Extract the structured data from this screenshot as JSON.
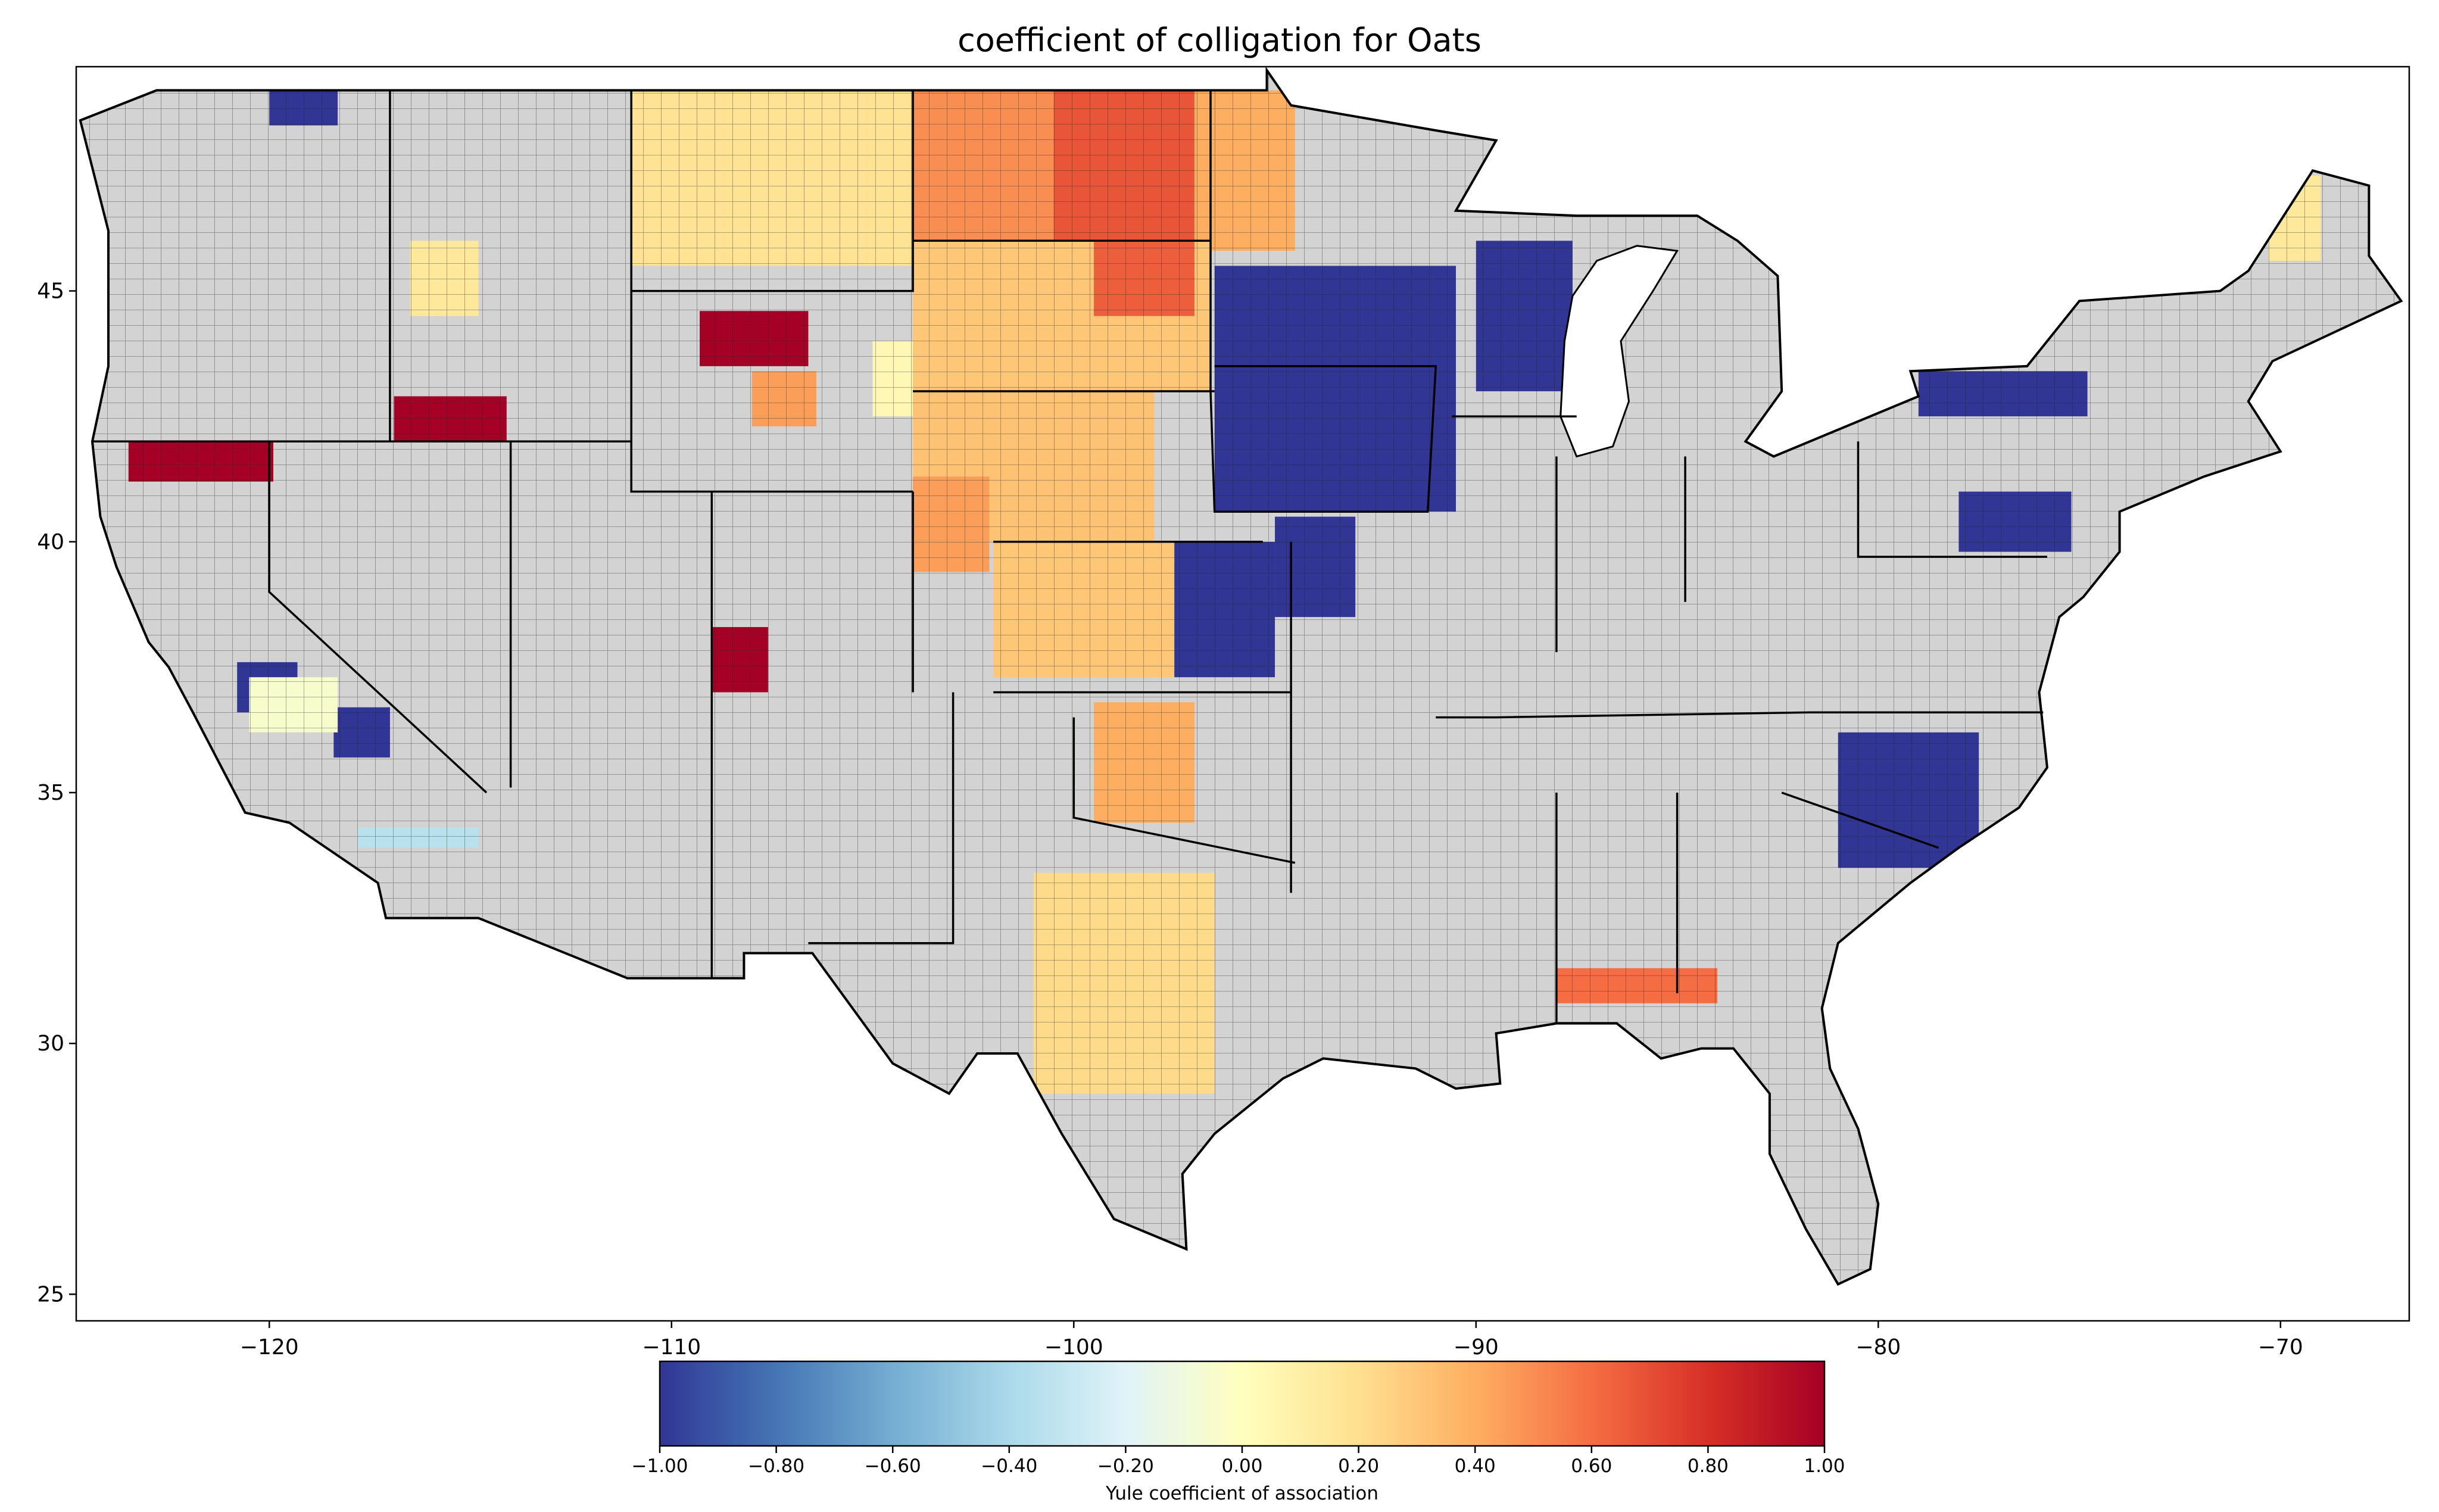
{
  "title": "coefficient of colligation for Oats",
  "chart_data": {
    "type": "choropleth",
    "title": "coefficient of colligation for Oats",
    "xlim": [
      -124.8,
      -66.8
    ],
    "ylim": [
      24.47,
      49.47
    ],
    "x_ticks": [
      -120,
      -110,
      -100,
      -90,
      -80,
      -70
    ],
    "x_tick_labels": [
      "−120",
      "−110",
      "−100",
      "−90",
      "−80",
      "−70"
    ],
    "y_ticks": [
      25,
      30,
      35,
      40,
      45
    ],
    "y_tick_labels": [
      "25",
      "30",
      "35",
      "40",
      "45"
    ],
    "no_data_color": "#d3d3d3",
    "colorbar": {
      "label": "Yule coefficient of association",
      "range": [
        -1.0,
        1.0
      ],
      "colormap": "RdYlBu_r",
      "ticks": [
        -1,
        -0.8,
        -0.6,
        -0.4,
        -0.2,
        0,
        0.2,
        0.4,
        0.6,
        0.8,
        1
      ],
      "tick_labels": [
        "−1.00",
        "−0.80",
        "−0.60",
        "−0.40",
        "−0.20",
        "0.00",
        "0.20",
        "0.40",
        "0.60",
        "0.80",
        "1.00"
      ],
      "placement": "bottom"
    },
    "regions": [
      {
        "name": "montana-central-east",
        "lon": [
          -111,
          -104
        ],
        "lat": [
          45.5,
          49
        ],
        "value": 0.18
      },
      {
        "name": "north-dakota-west",
        "lon": [
          -104,
          -100.5
        ],
        "lat": [
          46,
          49
        ],
        "value": 0.5
      },
      {
        "name": "north-dakota-east",
        "lon": [
          -100.5,
          -97
        ],
        "lat": [
          46,
          49
        ],
        "value": 0.68
      },
      {
        "name": "minnesota-northwest",
        "lon": [
          -97,
          -94.5
        ],
        "lat": [
          45.8,
          49
        ],
        "value": 0.4
      },
      {
        "name": "south-dakota",
        "lon": [
          -104,
          -96.6
        ],
        "lat": [
          43,
          46
        ],
        "value": 0.3
      },
      {
        "name": "south-dakota-east",
        "lon": [
          -99.5,
          -97
        ],
        "lat": [
          44.5,
          46
        ],
        "value": 0.65
      },
      {
        "name": "nebraska-west",
        "lon": [
          -104,
          -98
        ],
        "lat": [
          40,
          43
        ],
        "value": 0.32
      },
      {
        "name": "kansas",
        "lon": [
          -102,
          -97.5
        ],
        "lat": [
          37.3,
          40
        ],
        "value": 0.3
      },
      {
        "name": "kansas-east",
        "lon": [
          -97.5,
          -95
        ],
        "lat": [
          37.3,
          40
        ],
        "value": -1
      },
      {
        "name": "iowa-minnesota",
        "lon": [
          -96.5,
          -90.5
        ],
        "lat": [
          40.6,
          45.5
        ],
        "value": -1
      },
      {
        "name": "wisconsin-east",
        "lon": [
          -90,
          -87.6
        ],
        "lat": [
          43,
          46
        ],
        "value": -1
      },
      {
        "name": "wyoming-central",
        "lon": [
          -109.3,
          -106.6
        ],
        "lat": [
          43.5,
          44.6
        ],
        "value": 1
      },
      {
        "name": "wyoming-south-central",
        "lon": [
          -108,
          -106.4
        ],
        "lat": [
          42.3,
          43.4
        ],
        "value": 0.45
      },
      {
        "name": "wyoming-east",
        "lon": [
          -105,
          -104
        ],
        "lat": [
          42.5,
          44
        ],
        "value": 0.05
      },
      {
        "name": "idaho-south",
        "lon": [
          -116.9,
          -114.1
        ],
        "lat": [
          42,
          42.9
        ],
        "value": 1
      },
      {
        "name": "oregon-california-border",
        "lon": [
          -123.5,
          -119.9
        ],
        "lat": [
          41.2,
          42
        ],
        "value": 1
      },
      {
        "name": "utah-colorado",
        "lon": [
          -109,
          -107.6
        ],
        "lat": [
          37,
          38.3
        ],
        "value": 1
      },
      {
        "name": "colorado-northeast",
        "lon": [
          -104,
          -102.1
        ],
        "lat": [
          39.4,
          41.3
        ],
        "value": 0.45
      },
      {
        "name": "texas-central",
        "lon": [
          -101,
          -96.5
        ],
        "lat": [
          29,
          33.4
        ],
        "value": 0.22
      },
      {
        "name": "oklahoma",
        "lon": [
          -99.5,
          -97
        ],
        "lat": [
          34.4,
          36.8
        ],
        "value": 0.4
      },
      {
        "name": "new-york-west",
        "lon": [
          -79,
          -74.8
        ],
        "lat": [
          42.5,
          43.4
        ],
        "value": -1
      },
      {
        "name": "pennsylvania",
        "lon": [
          -78,
          -75.2
        ],
        "lat": [
          39.8,
          41
        ],
        "value": -1
      },
      {
        "name": "carolinas",
        "lon": [
          -81,
          -77.5
        ],
        "lat": [
          33.5,
          36.2
        ],
        "value": -1
      },
      {
        "name": "california-south",
        "lon": [
          -117.8,
          -114.8
        ],
        "lat": [
          33.9,
          34.3
        ],
        "value": -0.35
      },
      {
        "name": "california-central",
        "lon": [
          -120.8,
          -119.3
        ],
        "lat": [
          36.6,
          37.6
        ],
        "value": -1
      },
      {
        "name": "california-sierra",
        "lon": [
          -118.4,
          -117
        ],
        "lat": [
          35.7,
          36.7
        ],
        "value": -1
      },
      {
        "name": "california-valley",
        "lon": [
          -120.5,
          -118.3
        ],
        "lat": [
          36.2,
          37.3
        ],
        "value": -0.05
      },
      {
        "name": "washington-northeast",
        "lon": [
          -120,
          -118.3
        ],
        "lat": [
          48.3,
          49
        ],
        "value": -1
      },
      {
        "name": "idaho-central",
        "lon": [
          -116.5,
          -114.8
        ],
        "lat": [
          44.5,
          46
        ],
        "value": 0.15
      },
      {
        "name": "maine-north",
        "lon": [
          -70.3,
          -69
        ],
        "lat": [
          45.6,
          47.3
        ],
        "value": 0.15
      },
      {
        "name": "alabama-georgia",
        "lon": [
          -88,
          -84
        ],
        "lat": [
          30.8,
          31.5
        ],
        "value": 0.6
      },
      {
        "name": "missouri-west",
        "lon": [
          -95,
          -93
        ],
        "lat": [
          38.5,
          40.5
        ],
        "value": -1
      }
    ]
  }
}
